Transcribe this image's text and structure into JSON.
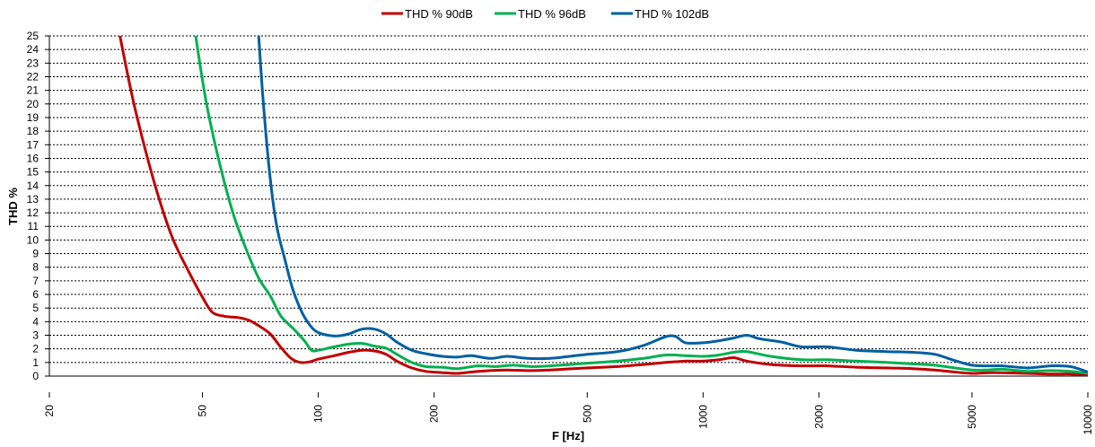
{
  "chart_data": {
    "type": "line",
    "xlabel": "F [Hz]",
    "ylabel": "THD %",
    "x_scale": "log",
    "xlim": [
      20,
      10000
    ],
    "ylim": [
      0,
      25
    ],
    "x_ticks": [
      20,
      50,
      100,
      200,
      500,
      1000,
      2000,
      5000,
      10000
    ],
    "y_ticks": [
      0,
      1,
      2,
      3,
      4,
      5,
      6,
      7,
      8,
      9,
      10,
      11,
      12,
      13,
      14,
      15,
      16,
      17,
      18,
      19,
      20,
      21,
      22,
      23,
      24,
      25
    ],
    "grid": "horizontal dashed",
    "legend_position": "top",
    "series": [
      {
        "name": "THD % 90dB",
        "color": "#c00000",
        "points": [
          [
            30.5,
            25
          ],
          [
            33,
            20.3
          ],
          [
            36,
            16
          ],
          [
            39,
            12.6
          ],
          [
            42,
            10
          ],
          [
            46,
            7.7
          ],
          [
            50,
            5.8
          ],
          [
            53,
            4.7
          ],
          [
            57,
            4.4
          ],
          [
            62,
            4.3
          ],
          [
            66,
            4.1
          ],
          [
            70,
            3.7
          ],
          [
            75,
            3.1
          ],
          [
            80,
            2.1
          ],
          [
            85,
            1.3
          ],
          [
            90,
            1.0
          ],
          [
            95,
            1.05
          ],
          [
            100,
            1.25
          ],
          [
            110,
            1.5
          ],
          [
            120,
            1.75
          ],
          [
            130,
            1.9
          ],
          [
            140,
            1.85
          ],
          [
            150,
            1.6
          ],
          [
            160,
            1.1
          ],
          [
            175,
            0.6
          ],
          [
            190,
            0.35
          ],
          [
            210,
            0.25
          ],
          [
            230,
            0.2
          ],
          [
            250,
            0.3
          ],
          [
            280,
            0.4
          ],
          [
            310,
            0.45
          ],
          [
            350,
            0.4
          ],
          [
            400,
            0.45
          ],
          [
            500,
            0.6
          ],
          [
            600,
            0.7
          ],
          [
            700,
            0.85
          ],
          [
            800,
            1.0
          ],
          [
            900,
            1.1
          ],
          [
            1000,
            1.1
          ],
          [
            1100,
            1.2
          ],
          [
            1200,
            1.35
          ],
          [
            1300,
            1.1
          ],
          [
            1500,
            0.85
          ],
          [
            1800,
            0.75
          ],
          [
            2100,
            0.75
          ],
          [
            2500,
            0.65
          ],
          [
            3000,
            0.6
          ],
          [
            3500,
            0.55
          ],
          [
            4000,
            0.45
          ],
          [
            4500,
            0.3
          ],
          [
            5000,
            0.2
          ],
          [
            5500,
            0.25
          ],
          [
            6000,
            0.25
          ],
          [
            7000,
            0.2
          ],
          [
            8000,
            0.15
          ],
          [
            9000,
            0.15
          ],
          [
            10000,
            0.1
          ]
        ]
      },
      {
        "name": "THD % 96dB",
        "color": "#00b050",
        "points": [
          [
            48,
            25
          ],
          [
            51,
            20.3
          ],
          [
            55,
            16
          ],
          [
            60,
            12
          ],
          [
            65,
            9.3
          ],
          [
            70,
            7.2
          ],
          [
            75,
            5.9
          ],
          [
            80,
            4.4
          ],
          [
            86,
            3.5
          ],
          [
            92,
            2.6
          ],
          [
            96,
            1.9
          ],
          [
            100,
            1.9
          ],
          [
            110,
            2.15
          ],
          [
            120,
            2.35
          ],
          [
            130,
            2.4
          ],
          [
            140,
            2.2
          ],
          [
            150,
            2.05
          ],
          [
            160,
            1.6
          ],
          [
            175,
            1.0
          ],
          [
            190,
            0.7
          ],
          [
            210,
            0.65
          ],
          [
            230,
            0.55
          ],
          [
            260,
            0.75
          ],
          [
            290,
            0.7
          ],
          [
            320,
            0.8
          ],
          [
            360,
            0.7
          ],
          [
            400,
            0.75
          ],
          [
            450,
            0.85
          ],
          [
            500,
            0.95
          ],
          [
            600,
            1.1
          ],
          [
            700,
            1.3
          ],
          [
            800,
            1.55
          ],
          [
            900,
            1.5
          ],
          [
            1000,
            1.45
          ],
          [
            1100,
            1.55
          ],
          [
            1200,
            1.75
          ],
          [
            1300,
            1.8
          ],
          [
            1500,
            1.45
          ],
          [
            1800,
            1.2
          ],
          [
            2100,
            1.2
          ],
          [
            2500,
            1.1
          ],
          [
            3000,
            1.0
          ],
          [
            3500,
            0.9
          ],
          [
            4000,
            0.8
          ],
          [
            4500,
            0.6
          ],
          [
            5000,
            0.45
          ],
          [
            5500,
            0.45
          ],
          [
            6000,
            0.5
          ],
          [
            7000,
            0.35
          ],
          [
            8000,
            0.4
          ],
          [
            9000,
            0.35
          ],
          [
            10000,
            0.2
          ]
        ]
      },
      {
        "name": "THD % 102dB",
        "color": "#0060a0",
        "points": [
          [
            70,
            25
          ],
          [
            72,
            20
          ],
          [
            75,
            14.5
          ],
          [
            78,
            11
          ],
          [
            82,
            8.5
          ],
          [
            86,
            6.3
          ],
          [
            91,
            4.6
          ],
          [
            96,
            3.6
          ],
          [
            100,
            3.2
          ],
          [
            106,
            3.0
          ],
          [
            112,
            2.95
          ],
          [
            120,
            3.1
          ],
          [
            130,
            3.45
          ],
          [
            140,
            3.45
          ],
          [
            150,
            3.1
          ],
          [
            160,
            2.5
          ],
          [
            175,
            1.9
          ],
          [
            190,
            1.65
          ],
          [
            210,
            1.45
          ],
          [
            230,
            1.4
          ],
          [
            250,
            1.5
          ],
          [
            280,
            1.3
          ],
          [
            310,
            1.45
          ],
          [
            350,
            1.3
          ],
          [
            400,
            1.3
          ],
          [
            450,
            1.45
          ],
          [
            500,
            1.6
          ],
          [
            600,
            1.8
          ],
          [
            700,
            2.25
          ],
          [
            800,
            2.9
          ],
          [
            850,
            2.9
          ],
          [
            900,
            2.45
          ],
          [
            1000,
            2.45
          ],
          [
            1100,
            2.6
          ],
          [
            1200,
            2.8
          ],
          [
            1300,
            3.0
          ],
          [
            1400,
            2.75
          ],
          [
            1600,
            2.5
          ],
          [
            1800,
            2.15
          ],
          [
            2100,
            2.15
          ],
          [
            2500,
            1.9
          ],
          [
            3000,
            1.8
          ],
          [
            3500,
            1.75
          ],
          [
            4000,
            1.6
          ],
          [
            4500,
            1.15
          ],
          [
            5000,
            0.8
          ],
          [
            5500,
            0.75
          ],
          [
            6000,
            0.75
          ],
          [
            7000,
            0.6
          ],
          [
            8000,
            0.75
          ],
          [
            9000,
            0.7
          ],
          [
            10000,
            0.3
          ]
        ]
      }
    ]
  }
}
